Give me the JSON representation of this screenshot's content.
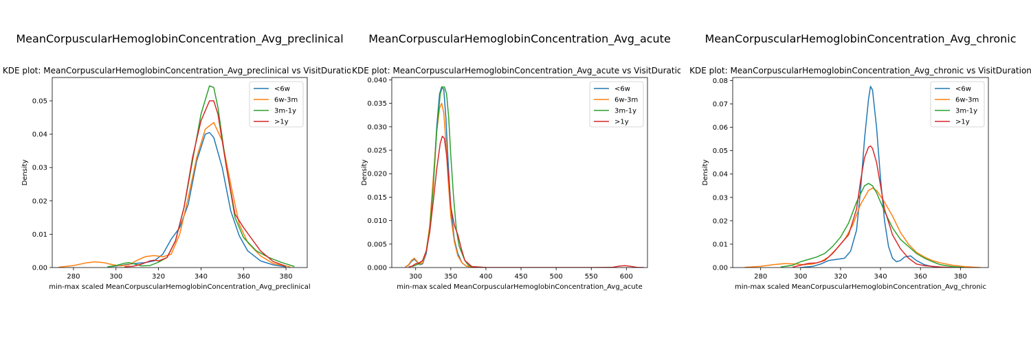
{
  "figure": {
    "panels": [
      {
        "suptitle": "MeanCorpuscularHemoglobinConcentration_Avg_preclinical",
        "subtitle": "KDE plot:  MeanCorpuscularHemoglobinConcentration_Avg_preclinical vs VisitDuration"
      },
      {
        "suptitle": "MeanCorpuscularHemoglobinConcentration_Avg_acute",
        "subtitle": "KDE plot:  MeanCorpuscularHemoglobinConcentration_Avg_acute vs VisitDuration"
      },
      {
        "suptitle": "MeanCorpuscularHemoglobinConcentration_Avg_chronic",
        "subtitle": "KDE plot:  MeanCorpuscularHemoglobinConcentration_Avg_chronic vs VisitDuration"
      }
    ]
  },
  "colors": {
    "<6w": "#1f77b4",
    "6w-3m": "#ff7f0e",
    "3m-1y": "#2ca02c",
    ">1y": "#d62728"
  },
  "chart_data": [
    {
      "type": "line",
      "title": "KDE plot:  MeanCorpuscularHemoglobinConcentration_Avg_preclinical vs VisitDuration",
      "xlabel": "min-max scaled MeanCorpuscularHemoglobinConcentration_Avg_preclinical",
      "ylabel": "Density",
      "xlim": [
        270,
        390
      ],
      "ylim": [
        0,
        0.057
      ],
      "xticks": [
        280,
        300,
        320,
        340,
        360,
        380
      ],
      "yticks": [
        0.0,
        0.01,
        0.02,
        0.03,
        0.04,
        0.05
      ],
      "ytick_decimals": 2,
      "legend": "top-right",
      "series": [
        {
          "name": "<6w",
          "x": [
            296,
            302,
            306,
            310,
            314,
            318,
            322,
            326,
            330,
            334,
            338,
            342,
            344,
            346,
            350,
            354,
            358,
            362,
            368,
            374,
            380
          ],
          "y": [
            0.0002,
            0.0006,
            0.001,
            0.0013,
            0.0015,
            0.002,
            0.004,
            0.0085,
            0.012,
            0.019,
            0.032,
            0.04,
            0.0405,
            0.039,
            0.03,
            0.017,
            0.0095,
            0.005,
            0.002,
            0.0008,
            0.0002
          ]
        },
        {
          "name": "6w-3m",
          "x": [
            273,
            280,
            286,
            290,
            294,
            298,
            302,
            306,
            310,
            314,
            318,
            322,
            326,
            330,
            334,
            338,
            342,
            346,
            350,
            354,
            358,
            362,
            368,
            374,
            382
          ],
          "y": [
            0.0001,
            0.0006,
            0.0014,
            0.0017,
            0.0015,
            0.0009,
            0.0005,
            0.0008,
            0.0022,
            0.0033,
            0.0036,
            0.0032,
            0.004,
            0.01,
            0.021,
            0.033,
            0.0415,
            0.0435,
            0.038,
            0.025,
            0.013,
            0.0075,
            0.0035,
            0.0012,
            0.0002
          ]
        },
        {
          "name": "3m-1y",
          "x": [
            296,
            300,
            304,
            306,
            308,
            312,
            316,
            320,
            324,
            328,
            332,
            336,
            340,
            344,
            346,
            348,
            352,
            356,
            360,
            366,
            372,
            378,
            384
          ],
          "y": [
            0.0002,
            0.0006,
            0.0013,
            0.0015,
            0.0012,
            0.0005,
            0.0006,
            0.0016,
            0.003,
            0.008,
            0.018,
            0.032,
            0.046,
            0.0545,
            0.054,
            0.048,
            0.03,
            0.015,
            0.009,
            0.005,
            0.003,
            0.0015,
            0.0003
          ]
        },
        {
          "name": ">1y",
          "x": [
            304,
            308,
            312,
            316,
            318,
            320,
            324,
            328,
            332,
            336,
            340,
            344,
            346,
            348,
            352,
            356,
            360,
            364,
            368,
            374,
            380
          ],
          "y": [
            0.0002,
            0.0004,
            0.001,
            0.002,
            0.0022,
            0.002,
            0.003,
            0.008,
            0.018,
            0.033,
            0.044,
            0.05,
            0.05,
            0.046,
            0.03,
            0.016,
            0.012,
            0.0085,
            0.005,
            0.0018,
            0.0004
          ]
        }
      ]
    },
    {
      "type": "line",
      "title": "KDE plot:  MeanCorpuscularHemoglobinConcentration_Avg_acute vs VisitDuration",
      "xlabel": "min-max scaled MeanCorpuscularHemoglobinConcentration_Avg_acute",
      "ylabel": "Density",
      "xlim": [
        266,
        630
      ],
      "ylim": [
        0,
        0.0405
      ],
      "xticks": [
        300,
        350,
        400,
        450,
        500,
        550,
        600
      ],
      "yticks": [
        0.0,
        0.005,
        0.01,
        0.015,
        0.02,
        0.025,
        0.03,
        0.035,
        0.04
      ],
      "ytick_decimals": 3,
      "legend": "top-right",
      "series": [
        {
          "name": "<6w",
          "x": [
            285,
            290,
            294,
            298,
            302,
            306,
            310,
            315,
            320,
            325,
            330,
            334,
            337,
            340,
            343,
            346,
            350,
            355,
            360,
            366,
            372,
            380,
            400
          ],
          "y": [
            0.0001,
            0.0005,
            0.0013,
            0.0018,
            0.0012,
            0.0006,
            0.0008,
            0.003,
            0.008,
            0.018,
            0.03,
            0.037,
            0.0385,
            0.038,
            0.032,
            0.023,
            0.013,
            0.006,
            0.003,
            0.001,
            0.0003,
            0.0001,
            0.0
          ]
        },
        {
          "name": "6w-3m",
          "x": [
            285,
            290,
            294,
            298,
            302,
            306,
            310,
            315,
            320,
            325,
            330,
            334,
            337,
            340,
            343,
            346,
            350,
            355,
            360,
            366,
            372,
            380,
            400
          ],
          "y": [
            0.0001,
            0.0006,
            0.0015,
            0.002,
            0.0013,
            0.0007,
            0.001,
            0.0035,
            0.009,
            0.019,
            0.029,
            0.034,
            0.035,
            0.033,
            0.027,
            0.019,
            0.011,
            0.0055,
            0.0025,
            0.001,
            0.0003,
            0.0001,
            0.0
          ]
        },
        {
          "name": "3m-1y",
          "x": [
            295,
            300,
            305,
            310,
            315,
            320,
            325,
            330,
            335,
            338,
            341,
            344,
            347,
            350,
            354,
            358,
            362,
            366,
            370,
            375,
            380,
            400
          ],
          "y": [
            0.0002,
            0.0005,
            0.0008,
            0.0015,
            0.0035,
            0.008,
            0.017,
            0.029,
            0.037,
            0.0385,
            0.0385,
            0.037,
            0.032,
            0.024,
            0.015,
            0.008,
            0.0045,
            0.003,
            0.0015,
            0.0005,
            0.0002,
            0.0
          ]
        },
        {
          "name": ">1y",
          "x": [
            290,
            295,
            300,
            305,
            310,
            315,
            320,
            325,
            330,
            335,
            338,
            341,
            344,
            347,
            350,
            355,
            360,
            365,
            370,
            380,
            400,
            450,
            500,
            550,
            580,
            590,
            598,
            606,
            615,
            625
          ],
          "y": [
            0.0001,
            0.0003,
            0.0008,
            0.001,
            0.0015,
            0.0035,
            0.0075,
            0.014,
            0.021,
            0.0265,
            0.028,
            0.0275,
            0.024,
            0.019,
            0.013,
            0.009,
            0.007,
            0.004,
            0.0015,
            0.0002,
            0.0,
            0.0,
            0.0,
            0.0,
            5e-05,
            0.0003,
            0.0004,
            0.00025,
            5e-05,
            0.0
          ]
        }
      ]
    },
    {
      "type": "line",
      "title": "KDE plot:  MeanCorpuscularHemoglobinConcentration_Avg_chronic vs VisitDuration",
      "xlabel": "min-max scaled MeanCorpuscularHemoglobinConcentration_Avg_chronic",
      "ylabel": "Density",
      "xlim": [
        266,
        394
      ],
      "ylim": [
        0,
        0.0813
      ],
      "xticks": [
        280,
        300,
        320,
        340,
        360,
        380
      ],
      "yticks": [
        0.0,
        0.01,
        0.02,
        0.03,
        0.04,
        0.05,
        0.06,
        0.07,
        0.08
      ],
      "ytick_decimals": 2,
      "legend": "top-right",
      "series": [
        {
          "name": "<6w",
          "x": [
            300,
            306,
            310,
            314,
            318,
            322,
            325,
            328,
            330,
            332,
            334,
            335,
            336,
            338,
            340,
            342,
            344,
            346,
            348,
            350,
            352,
            355,
            358,
            362,
            366,
            370
          ],
          "y": [
            0.0,
            0.0005,
            0.0015,
            0.003,
            0.0035,
            0.004,
            0.007,
            0.016,
            0.033,
            0.055,
            0.072,
            0.0775,
            0.076,
            0.06,
            0.038,
            0.02,
            0.009,
            0.004,
            0.0025,
            0.003,
            0.0045,
            0.005,
            0.003,
            0.0012,
            0.0004,
            0.0
          ]
        },
        {
          "name": "6w-3m",
          "x": [
            272,
            280,
            286,
            292,
            298,
            302,
            306,
            310,
            314,
            318,
            322,
            326,
            330,
            334,
            336,
            338,
            342,
            346,
            350,
            354,
            358,
            362,
            366,
            370,
            376,
            382,
            390
          ],
          "y": [
            0.0001,
            0.0005,
            0.0012,
            0.0017,
            0.0015,
            0.0012,
            0.0015,
            0.0025,
            0.0045,
            0.008,
            0.012,
            0.018,
            0.027,
            0.033,
            0.034,
            0.033,
            0.028,
            0.022,
            0.015,
            0.01,
            0.0065,
            0.0045,
            0.003,
            0.002,
            0.001,
            0.0004,
            0.0
          ]
        },
        {
          "name": "3m-1y",
          "x": [
            290,
            296,
            300,
            304,
            308,
            312,
            316,
            320,
            324,
            328,
            332,
            334,
            336,
            338,
            342,
            346,
            350,
            354,
            358,
            362,
            366,
            370,
            376,
            382
          ],
          "y": [
            0.0002,
            0.001,
            0.0025,
            0.0035,
            0.0045,
            0.006,
            0.009,
            0.013,
            0.019,
            0.028,
            0.035,
            0.036,
            0.035,
            0.032,
            0.024,
            0.017,
            0.012,
            0.009,
            0.006,
            0.004,
            0.0025,
            0.0012,
            0.0004,
            0.0
          ]
        },
        {
          "name": ">1y",
          "x": [
            296,
            300,
            304,
            308,
            312,
            316,
            320,
            324,
            328,
            330,
            332,
            334,
            335,
            336,
            338,
            340,
            342,
            346,
            350,
            354,
            358,
            362,
            366,
            370,
            376
          ],
          "y": [
            0.0002,
            0.001,
            0.0018,
            0.002,
            0.003,
            0.006,
            0.01,
            0.014,
            0.025,
            0.037,
            0.047,
            0.0515,
            0.052,
            0.051,
            0.045,
            0.035,
            0.025,
            0.014,
            0.008,
            0.004,
            0.0015,
            0.0008,
            0.0005,
            0.0002,
            0.0
          ]
        }
      ]
    }
  ]
}
